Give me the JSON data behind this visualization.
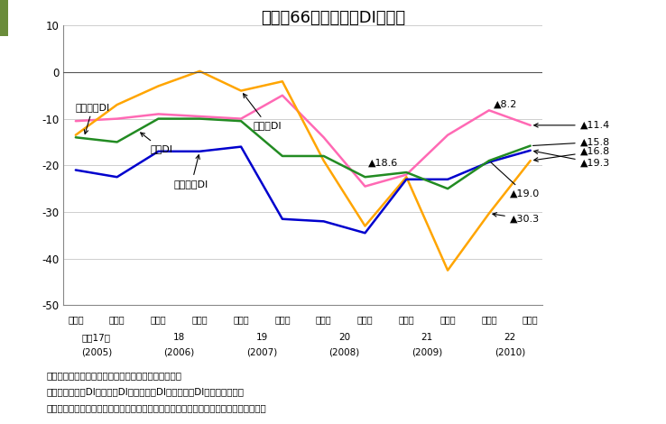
{
  "title": "図１－66　食品産業DIの推移",
  "x_labels_top": [
    "上半期",
    "下半期",
    "上半期",
    "下半期",
    "上半期",
    "下半期",
    "上半期",
    "下半期",
    "上半期",
    "下半期",
    "上半期",
    "下半期"
  ],
  "year_positions": [
    0,
    2,
    4,
    6,
    8,
    10
  ],
  "year_mid_labels": [
    "平成17年",
    "18",
    "19",
    "20",
    "21",
    "22"
  ],
  "year_bot_labels": [
    "(2005)",
    "(2006)",
    "(2007)",
    "(2008)",
    "(2009)",
    "(2010)"
  ],
  "ylim": [
    -50,
    10
  ],
  "yticks": [
    -50,
    -40,
    -30,
    -20,
    -10,
    0,
    10
  ],
  "series": {
    "景況DI": {
      "color": "#ff69b4",
      "values": [
        -10.5,
        -10.0,
        -9.0,
        -9.5,
        -10.0,
        -5.0,
        -14.0,
        -24.5,
        -22.0,
        -13.5,
        -8.2,
        -11.4
      ]
    },
    "売上高DI": {
      "color": "#ffa500",
      "values": [
        -13.5,
        -7.0,
        -3.0,
        0.2,
        -4.0,
        -2.0,
        -19.0,
        -33.0,
        -22.5,
        -42.5,
        -30.3,
        -19.0
      ]
    },
    "経常利益DI": {
      "color": "#0000cd",
      "values": [
        -21.0,
        -22.5,
        -17.0,
        -17.0,
        -16.0,
        -31.5,
        -32.0,
        -34.5,
        -23.0,
        -23.0,
        -19.3,
        -16.8
      ]
    },
    "資金繰りDI": {
      "color": "#228b22",
      "values": [
        -14.0,
        -15.0,
        -10.0,
        -10.0,
        -10.5,
        -18.0,
        -18.0,
        -22.5,
        -21.5,
        -25.0,
        -19.0,
        -15.8
      ]
    }
  },
  "note_lines": [
    "資料：（株）日本政策金融公庫「食品産業動向調査」",
    "　注：１）景況DIは売上高DI、経常利益DI、資金繰りDIを平均して算出",
    "　　　２）全国の食品関連企業（製造業、卸売業、小売業、飲食店）を対象として実施"
  ],
  "bg_color": "#ffffff",
  "header_bg": "#d0dfa0",
  "header_left_color": "#6a8c3a"
}
